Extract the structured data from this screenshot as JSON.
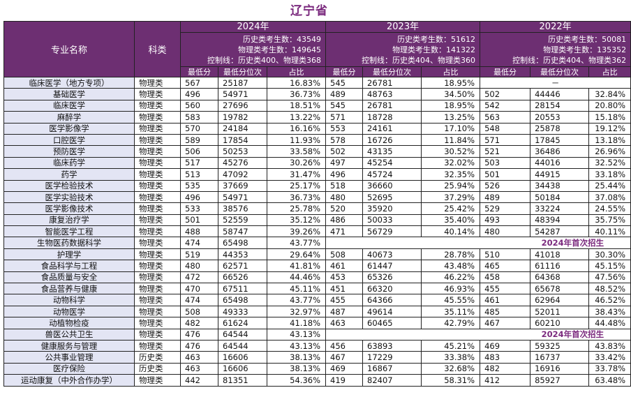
{
  "title": "辽宁省",
  "header": {
    "col_name": "专业名称",
    "col_category": "科类",
    "years": [
      {
        "year": "2024年",
        "stats": [
          "历史类考生数：43549",
          "物理类考生数：149645",
          "控制线：历史类400、物理类368"
        ]
      },
      {
        "year": "2023年",
        "stats": [
          "历史类考生数：51612",
          "物理类考生数：141322",
          "控制线：历史类404、物理类360"
        ]
      },
      {
        "year": "2022年",
        "stats": [
          "历史类考生数：50081",
          "物理类考生数：135352",
          "控制线：历史类404、物理类362"
        ]
      }
    ],
    "sub": [
      "最低分",
      "最低分位次",
      "占比"
    ]
  },
  "rows": [
    {
      "name": "临床医学（地方专项）",
      "cat": "物理类",
      "y2024": [
        "567",
        "25187",
        "16.83%"
      ],
      "y2023": [
        "545",
        "26781",
        "18.95%"
      ],
      "y2022": [
        "－"
      ]
    },
    {
      "name": "基础医学",
      "cat": "物理类",
      "y2024": [
        "496",
        "54971",
        "36.73%"
      ],
      "y2023": [
        "489",
        "48763",
        "34.50%"
      ],
      "y2022": [
        "502",
        "44446",
        "32.84%"
      ]
    },
    {
      "name": "临床医学",
      "cat": "物理类",
      "y2024": [
        "560",
        "27696",
        "18.51%"
      ],
      "y2023": [
        "545",
        "26781",
        "18.95%"
      ],
      "y2022": [
        "542",
        "28154",
        "20.80%"
      ]
    },
    {
      "name": "麻醉学",
      "cat": "物理类",
      "y2024": [
        "583",
        "19782",
        "13.22%"
      ],
      "y2023": [
        "571",
        "18728",
        "13.25%"
      ],
      "y2022": [
        "563",
        "20553",
        "15.18%"
      ]
    },
    {
      "name": "医学影像学",
      "cat": "物理类",
      "y2024": [
        "570",
        "24184",
        "16.16%"
      ],
      "y2023": [
        "553",
        "24161",
        "17.10%"
      ],
      "y2022": [
        "548",
        "25878",
        "19.12%"
      ]
    },
    {
      "name": "口腔医学",
      "cat": "物理类",
      "y2024": [
        "589",
        "17854",
        "11.93%"
      ],
      "y2023": [
        "578",
        "16726",
        "11.84%"
      ],
      "y2022": [
        "571",
        "17845",
        "13.18%"
      ]
    },
    {
      "name": "预防医学",
      "cat": "物理类",
      "y2024": [
        "506",
        "50253",
        "33.58%"
      ],
      "y2023": [
        "502",
        "43135",
        "30.52%"
      ],
      "y2022": [
        "521",
        "36486",
        "26.96%"
      ]
    },
    {
      "name": "临床药学",
      "cat": "物理类",
      "y2024": [
        "517",
        "45276",
        "30.26%"
      ],
      "y2023": [
        "497",
        "45254",
        "32.02%"
      ],
      "y2022": [
        "503",
        "44016",
        "32.52%"
      ]
    },
    {
      "name": "药学",
      "cat": "物理类",
      "y2024": [
        "513",
        "47092",
        "31.47%"
      ],
      "y2023": [
        "496",
        "45724",
        "32.35%"
      ],
      "y2022": [
        "501",
        "44915",
        "33.18%"
      ]
    },
    {
      "name": "医学检验技术",
      "cat": "物理类",
      "y2024": [
        "535",
        "37669",
        "25.17%"
      ],
      "y2023": [
        "518",
        "36660",
        "25.94%"
      ],
      "y2022": [
        "526",
        "34438",
        "25.44%"
      ]
    },
    {
      "name": "医学实验技术",
      "cat": "物理类",
      "y2024": [
        "496",
        "54971",
        "36.73%"
      ],
      "y2023": [
        "480",
        "52695",
        "37.29%"
      ],
      "y2022": [
        "489",
        "50184",
        "37.08%"
      ]
    },
    {
      "name": "医学影像技术",
      "cat": "物理类",
      "y2024": [
        "533",
        "38576",
        "25.78%"
      ],
      "y2023": [
        "520",
        "35920",
        "25.42%"
      ],
      "y2022": [
        "529",
        "33224",
        "24.55%"
      ]
    },
    {
      "name": "康复治疗学",
      "cat": "物理类",
      "y2024": [
        "501",
        "52559",
        "35.12%"
      ],
      "y2023": [
        "486",
        "50033",
        "35.40%"
      ],
      "y2022": [
        "493",
        "48394",
        "35.75%"
      ]
    },
    {
      "name": "智能医学工程",
      "cat": "物理类",
      "y2024": [
        "488",
        "58747",
        "39.26%"
      ],
      "y2023": [
        "471",
        "56729",
        "40.14%"
      ],
      "y2022": [
        "480",
        "54287",
        "40.11%"
      ]
    },
    {
      "name": "生物医药数据科学",
      "cat": "物理类",
      "y2024": [
        "474",
        "65498",
        "43.77%"
      ],
      "first": "2024年首次招生"
    },
    {
      "name": "护理学",
      "cat": "物理类",
      "y2024": [
        "519",
        "44353",
        "29.64%"
      ],
      "y2023": [
        "508",
        "40673",
        "28.78%"
      ],
      "y2022": [
        "510",
        "41018",
        "30.30%"
      ]
    },
    {
      "name": "食品科学与工程",
      "cat": "物理类",
      "y2024": [
        "480",
        "62571",
        "41.81%"
      ],
      "y2023": [
        "461",
        "61447",
        "43.48%"
      ],
      "y2022": [
        "465",
        "61116",
        "45.15%"
      ]
    },
    {
      "name": "食品质量与安全",
      "cat": "物理类",
      "y2024": [
        "472",
        "66526",
        "44.46%"
      ],
      "y2023": [
        "453",
        "65326",
        "46.22%"
      ],
      "y2022": [
        "458",
        "64368",
        "47.56%"
      ]
    },
    {
      "name": "食品营养与健康",
      "cat": "物理类",
      "y2024": [
        "470",
        "67511",
        "45.11%"
      ],
      "y2023": [
        "451",
        "66320",
        "46.93%"
      ],
      "y2022": [
        "455",
        "65678",
        "48.52%"
      ]
    },
    {
      "name": "动物科学",
      "cat": "物理类",
      "y2024": [
        "474",
        "65498",
        "43.77%"
      ],
      "y2023": [
        "455",
        "64366",
        "45.55%"
      ],
      "y2022": [
        "461",
        "62964",
        "46.52%"
      ]
    },
    {
      "name": "动物医学",
      "cat": "物理类",
      "y2024": [
        "508",
        "49333",
        "32.97%"
      ],
      "y2023": [
        "487",
        "49614",
        "35.11%"
      ],
      "y2022": [
        "485",
        "52011",
        "38.43%"
      ]
    },
    {
      "name": "动植物检疫",
      "cat": "物理类",
      "y2024": [
        "482",
        "61624",
        "41.18%"
      ],
      "y2023": [
        "463",
        "60465",
        "42.79%"
      ],
      "y2022": [
        "467",
        "60210",
        "44.48%"
      ]
    },
    {
      "name": "兽医公共卫生",
      "cat": "物理类",
      "y2024": [
        "476",
        "64544",
        "43.13%"
      ],
      "first": "2024年首次招生"
    },
    {
      "name": "健康服务与管理",
      "cat": "物理类",
      "y2024": [
        "476",
        "64544",
        "43.13%"
      ],
      "y2023": [
        "456",
        "63893",
        "45.21%"
      ],
      "y2022": [
        "469",
        "59325",
        "43.83%"
      ]
    },
    {
      "name": "公共事业管理",
      "cat": "历史类",
      "y2024": [
        "463",
        "16606",
        "38.13%"
      ],
      "y2023": [
        "467",
        "17229",
        "33.38%"
      ],
      "y2022": [
        "483",
        "16737",
        "33.42%"
      ]
    },
    {
      "name": "医疗保险",
      "cat": "历史类",
      "y2024": [
        "463",
        "16606",
        "38.13%"
      ],
      "y2023": [
        "469",
        "16867",
        "32.68%"
      ],
      "y2022": [
        "482",
        "16916",
        "33.78%"
      ]
    },
    {
      "name": "运动康复（中外合作办学）",
      "cat": "物理类",
      "y2024": [
        "442",
        "81351",
        "54.36%"
      ],
      "y2023": [
        "419",
        "82407",
        "58.31%"
      ],
      "y2022": [
        "412",
        "85927",
        "63.48%"
      ]
    }
  ]
}
